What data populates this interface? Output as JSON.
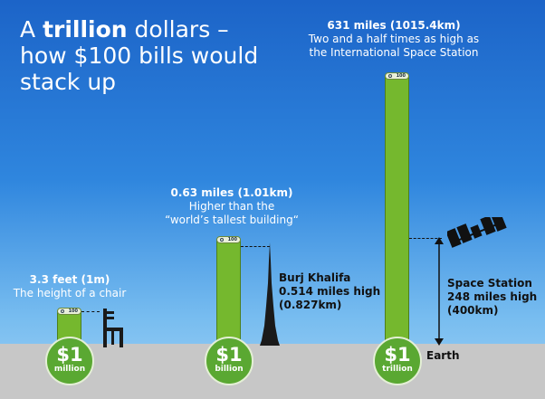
{
  "title": {
    "line1_prefix": "A ",
    "line1_bold": "trillion",
    "line1_suffix": " dollars –",
    "line2": "how $100 bills would",
    "line3": "stack up"
  },
  "stacks": [
    {
      "coin_amount": "$1",
      "coin_unit": "million",
      "headline": "3.3 feet (1m)",
      "subline": "The height of a chair",
      "bill_label": "100"
    },
    {
      "coin_amount": "$1",
      "coin_unit": "billion",
      "headline": "0.63 miles (1.01km)",
      "subline1": "Higher than the",
      "subline2": "“world’s tallest building“",
      "bill_label": "100"
    },
    {
      "coin_amount": "$1",
      "coin_unit": "trillion",
      "headline": "631 miles (1015.4km)",
      "subline1": "Two and a half times as high as",
      "subline2": "the International Space Station",
      "bill_label": "100"
    }
  ],
  "burj": {
    "name": "Burj Khalifa",
    "height_miles": "0.514 miles high",
    "height_km": "(0.827km)"
  },
  "station": {
    "name": "Space Station",
    "height_miles": "248 miles high",
    "height_km": "(400km)"
  },
  "earth_label": "Earth",
  "colors": {
    "sky_top": "#1c64c8",
    "sky_bottom": "#9ed0f4",
    "stack_green": "#75b82e",
    "ground": "#c7c7c7"
  }
}
